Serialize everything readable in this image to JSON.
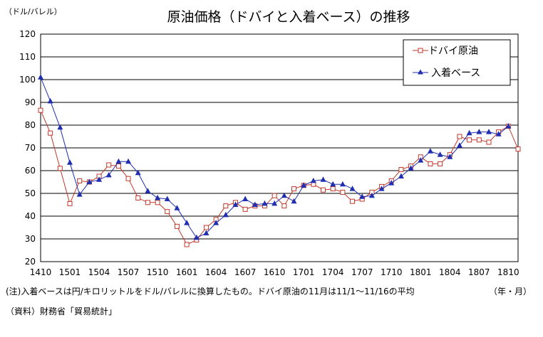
{
  "chart_data": {
    "type": "line",
    "title": "原油価格（ドバイと入着ベース）の推移",
    "ylabel": "（ドル/バレル）",
    "xlabel": "（年・月）",
    "ylim": [
      20,
      120
    ],
    "yticks": [
      20,
      30,
      40,
      50,
      60,
      70,
      80,
      90,
      100,
      110,
      120
    ],
    "grid": true,
    "legend_position": "top-right",
    "x": [
      "1410",
      "1411",
      "1412",
      "1501",
      "1502",
      "1503",
      "1504",
      "1505",
      "1506",
      "1507",
      "1508",
      "1509",
      "1510",
      "1511",
      "1512",
      "1601",
      "1602",
      "1603",
      "1604",
      "1605",
      "1606",
      "1607",
      "1608",
      "1609",
      "1610",
      "1611",
      "1612",
      "1701",
      "1702",
      "1703",
      "1704",
      "1705",
      "1706",
      "1707",
      "1708",
      "1709",
      "1710",
      "1711",
      "1712",
      "1801",
      "1802",
      "1803",
      "1804",
      "1805",
      "1806",
      "1807",
      "1808",
      "1809",
      "1810",
      "1811"
    ],
    "xtick_labels": [
      "1410",
      "1501",
      "1504",
      "1507",
      "1510",
      "1601",
      "1604",
      "1607",
      "1610",
      "1701",
      "1704",
      "1707",
      "1710",
      "1801",
      "1804",
      "1807",
      "1810"
    ],
    "series": [
      {
        "name": "ドバイ原油",
        "color": "#c0392b",
        "marker": "square-open",
        "values": [
          86.5,
          76.5,
          61,
          45.5,
          55.5,
          55,
          57.5,
          62.5,
          62,
          56.5,
          48,
          46,
          46,
          42,
          35.5,
          27.5,
          29.5,
          35,
          38.5,
          44.5,
          46,
          43,
          44.5,
          44.5,
          49,
          44.5,
          52,
          53.5,
          54,
          51.5,
          52,
          50.5,
          46.5,
          47.5,
          50.5,
          53,
          55.5,
          60.5,
          62,
          66,
          63,
          63,
          67,
          75,
          73.5,
          73.5,
          72.5,
          77,
          79.5,
          69.5
        ]
      },
      {
        "name": "入着ベース",
        "color": "#1f2fb0",
        "marker": "triangle",
        "values": [
          101,
          90.5,
          79,
          63.5,
          49.5,
          55,
          56,
          58,
          64,
          64,
          59,
          51,
          48,
          47.5,
          43.5,
          37,
          30.5,
          32.5,
          37,
          40.5,
          45,
          47.5,
          45,
          45.5,
          45.5,
          49,
          46.5,
          53.5,
          55.5,
          56,
          54,
          54,
          52,
          48.5,
          49,
          52,
          54.5,
          57.5,
          61,
          64.5,
          68.5,
          67,
          66,
          71,
          76.5,
          77,
          77,
          76,
          79.5,
          null
        ]
      }
    ]
  },
  "notes": {
    "footnote": "(注)入着ベースは円/キロリットルをドル/バレルに換算したもの。ドバイ原油の11月は11/1～11/16の平均",
    "x_unit": "（年・月）",
    "source": "（資料）財務省「貿易統計」"
  }
}
